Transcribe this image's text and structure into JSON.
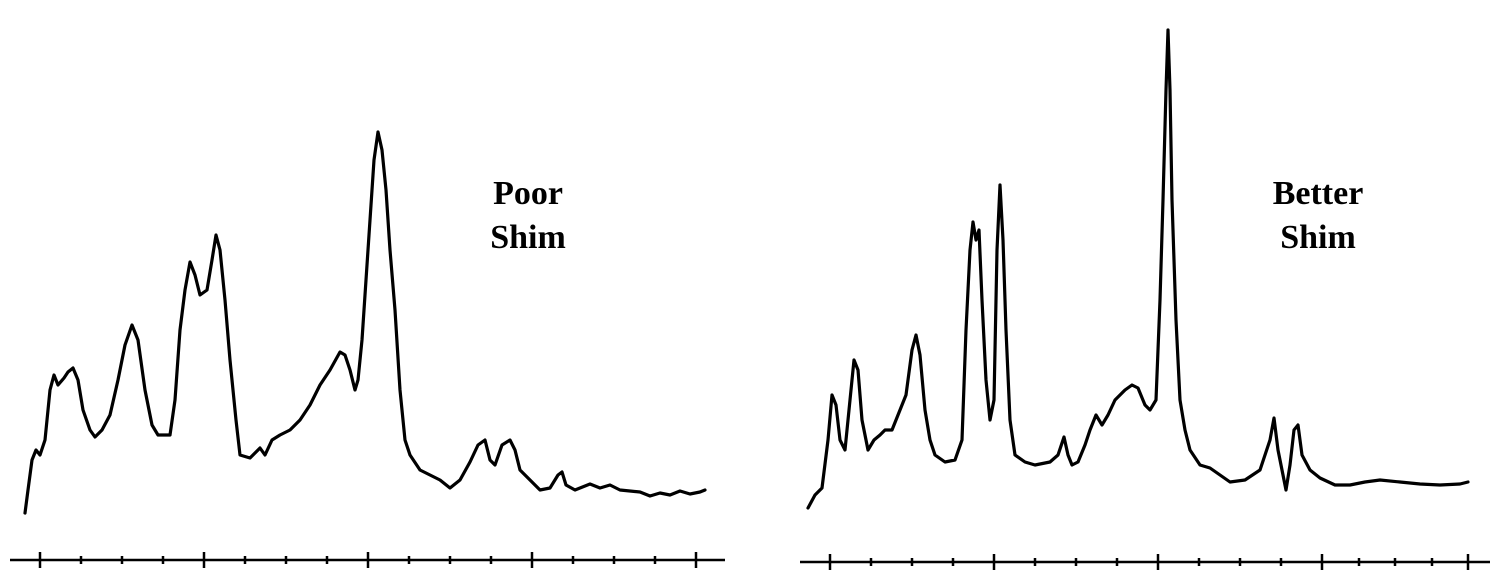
{
  "panels": [
    {
      "label": [
        "Poor",
        "Shim"
      ]
    },
    {
      "label": [
        "Better",
        "Shim"
      ]
    }
  ]
}
